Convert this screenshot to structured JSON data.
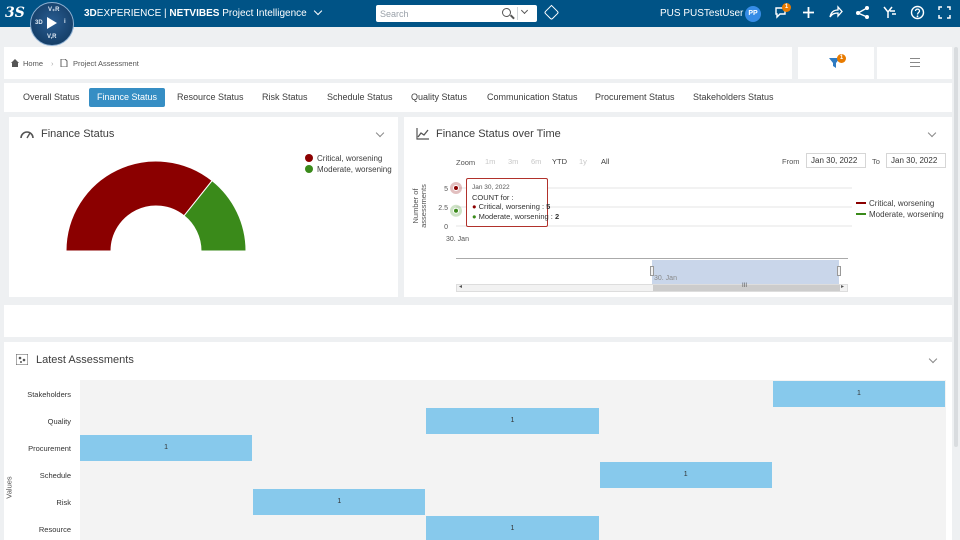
{
  "topbar": {
    "brand_prefix": "3D",
    "brand_experience": "EXPERIENCE",
    "brand_sep": " | ",
    "brand_netvibes": "NETVIBES",
    "app_name": "Project Intelligence",
    "search_placeholder": "Search",
    "user_name": "PUS PUSTestUser",
    "avatar_initials": "PP",
    "notif_badge": "1",
    "compass": {
      "top": "V₊R",
      "left": "3D",
      "right": "i",
      "bottom": "V,R"
    }
  },
  "breadcrumb": {
    "home": "Home",
    "current": "Project Assessment",
    "filter_badge": "1"
  },
  "tabs": [
    {
      "label": "Overall Status",
      "active": false
    },
    {
      "label": "Finance Status",
      "active": true
    },
    {
      "label": "Resource Status",
      "active": false
    },
    {
      "label": "Risk Status",
      "active": false
    },
    {
      "label": "Schedule Status",
      "active": false
    },
    {
      "label": "Quality Status",
      "active": false
    },
    {
      "label": "Communication Status",
      "active": false
    },
    {
      "label": "Procurement Status",
      "active": false
    },
    {
      "label": "Stakeholders Status",
      "active": false
    }
  ],
  "colors": {
    "critical": "#8b0000",
    "moderate": "#3a8a1a",
    "accent": "#368ec4",
    "topbar": "#005386",
    "heat_cell": "#87c9ec"
  },
  "finance_panel": {
    "title": "Finance Status",
    "legend": [
      "Critical, worsening",
      "Moderate, worsening"
    ]
  },
  "timeline_panel": {
    "title": "Finance Status over Time",
    "zoom_label": "Zoom",
    "zoom_options": [
      {
        "label": "1m",
        "enabled": false
      },
      {
        "label": "3m",
        "enabled": false
      },
      {
        "label": "6m",
        "enabled": false
      },
      {
        "label": "YTD",
        "enabled": true
      },
      {
        "label": "1y",
        "enabled": false
      },
      {
        "label": "All",
        "enabled": true
      }
    ],
    "from_label": "From",
    "from_value": "Jan 30, 2022",
    "to_label": "To",
    "to_value": "Jan 30, 2022",
    "navigator_label": "30. Jan",
    "navigator_grip": "III",
    "legend": [
      "Critical, worsening",
      "Moderate, worsening"
    ],
    "tooltip": {
      "date": "Jan 30, 2022",
      "heading": "COUNT for :",
      "rows": [
        {
          "name": "Critical, worsening",
          "sep": " : ",
          "value": "5"
        },
        {
          "name": "Moderate, worsening",
          "sep": " : ",
          "value": "2"
        }
      ]
    }
  },
  "assessments_panel": {
    "title": "Latest Assessments",
    "y_axis_title": "Values"
  },
  "chart_data": [
    {
      "type": "pie",
      "title": "",
      "categories": [
        "Critical, worsening",
        "Moderate, worsening"
      ],
      "values": [
        5,
        2
      ],
      "style": "semi-donut",
      "legend": "top-right"
    },
    {
      "type": "line",
      "title": "",
      "x": [
        "30. Jan"
      ],
      "series": [
        {
          "name": "Critical, worsening",
          "values": [
            5
          ]
        },
        {
          "name": "Moderate, worsening",
          "values": [
            2
          ]
        }
      ],
      "ylabel": "Number of assessments",
      "yticks": [
        "0",
        "2.5",
        "5"
      ],
      "ylim": [
        0,
        5
      ],
      "legend": "right"
    },
    {
      "type": "heatmap",
      "title": "",
      "ylabel": "Values",
      "rows": [
        "Stakeholders",
        "Quality",
        "Procurement",
        "Schedule",
        "Risk",
        "Resource"
      ],
      "columns": 5,
      "cells": [
        {
          "row": "Stakeholders",
          "col": 4,
          "value": "1"
        },
        {
          "row": "Quality",
          "col": 2,
          "value": "1"
        },
        {
          "row": "Procurement",
          "col": 0,
          "value": "1"
        },
        {
          "row": "Schedule",
          "col": 3,
          "value": "1"
        },
        {
          "row": "Risk",
          "col": 1,
          "value": "1"
        },
        {
          "row": "Resource",
          "col": 2,
          "value": "1"
        }
      ]
    }
  ]
}
